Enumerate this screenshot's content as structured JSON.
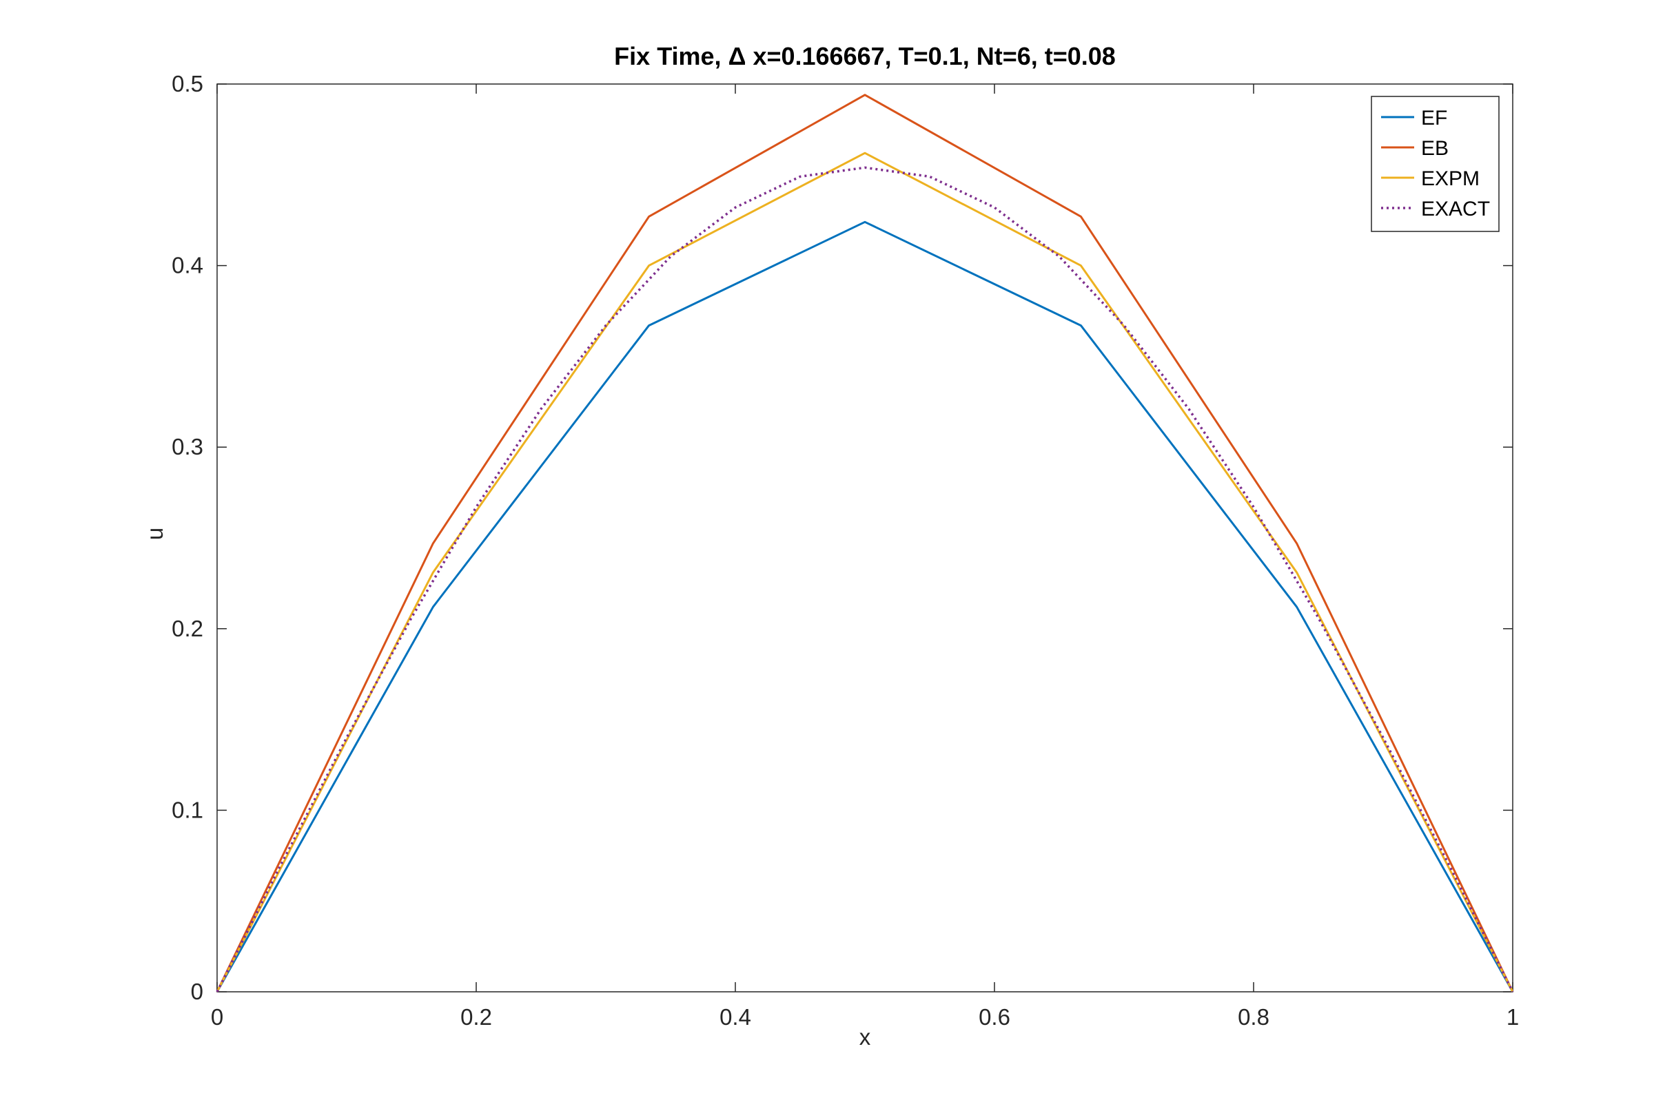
{
  "chart_data": {
    "type": "line",
    "title": "Fix Time, Δ x=0.166667, T=0.1, Nt=6, t=0.08",
    "xlabel": "x",
    "ylabel": "u",
    "xlim": [
      0,
      1
    ],
    "ylim": [
      0,
      0.5
    ],
    "xticks": [
      "0",
      "0.2",
      "0.4",
      "0.6",
      "0.8",
      "1"
    ],
    "yticks": [
      "0",
      "0.1",
      "0.2",
      "0.3",
      "0.4",
      "0.5"
    ],
    "grid": false,
    "legend_position": "top-right",
    "series": [
      {
        "name": "EF",
        "color": "#0072BD",
        "style": "solid",
        "x": [
          0,
          0.1667,
          0.3333,
          0.5,
          0.6667,
          0.8333,
          1
        ],
        "y": [
          0,
          0.212,
          0.367,
          0.424,
          0.367,
          0.212,
          0
        ]
      },
      {
        "name": "EB",
        "color": "#D95319",
        "style": "solid",
        "x": [
          0,
          0.1667,
          0.3333,
          0.5,
          0.6667,
          0.8333,
          1
        ],
        "y": [
          0,
          0.247,
          0.427,
          0.494,
          0.427,
          0.247,
          0
        ]
      },
      {
        "name": "EXPM",
        "color": "#EDB120",
        "style": "solid",
        "x": [
          0,
          0.1667,
          0.3333,
          0.5,
          0.6667,
          0.8333,
          1
        ],
        "y": [
          0,
          0.231,
          0.4,
          0.462,
          0.4,
          0.231,
          0
        ]
      },
      {
        "name": "EXACT",
        "color": "#7E2F8E",
        "style": "dotted",
        "x": [
          0,
          0.05,
          0.1,
          0.15,
          0.2,
          0.25,
          0.3,
          0.35,
          0.4,
          0.45,
          0.5,
          0.55,
          0.6,
          0.65,
          0.7,
          0.75,
          0.8,
          0.85,
          0.9,
          0.95,
          1
        ],
        "y": [
          0,
          0.071,
          0.14,
          0.206,
          0.267,
          0.321,
          0.367,
          0.405,
          0.432,
          0.449,
          0.454,
          0.449,
          0.432,
          0.405,
          0.367,
          0.321,
          0.267,
          0.206,
          0.14,
          0.071,
          0
        ]
      }
    ]
  }
}
